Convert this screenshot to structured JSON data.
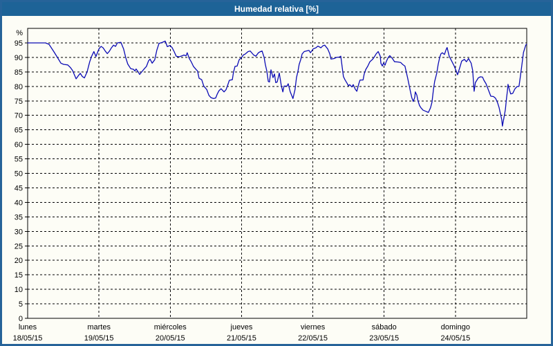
{
  "window": {
    "title": "Humedad relativa [%]"
  },
  "colors": {
    "titlebar_bg": "#1d6397",
    "frame_border": "#266399",
    "chart_bg": "#fdfdf6",
    "grid": "#000000",
    "line": "#0a0ab4",
    "title_text": "#ffffff",
    "axis_text": "#000000"
  },
  "chart_data": {
    "type": "line",
    "title": "Humedad relativa [%]",
    "xlabel": "",
    "ylabel": "%",
    "ylim": [
      0,
      100
    ],
    "yticks": [
      0,
      5,
      10,
      15,
      20,
      25,
      30,
      35,
      40,
      45,
      50,
      55,
      60,
      65,
      70,
      75,
      80,
      85,
      90,
      95
    ],
    "grid": "dashed",
    "legend": "none",
    "x_range_hours": [
      0,
      168
    ],
    "x_axis": {
      "days": [
        {
          "name": "lunes",
          "date": "18/05/15"
        },
        {
          "name": "martes",
          "date": "19/05/15"
        },
        {
          "name": "miércoles",
          "date": "20/05/15"
        },
        {
          "name": "jueves",
          "date": "21/05/15"
        },
        {
          "name": "viernes",
          "date": "22/05/15"
        },
        {
          "name": "sábado",
          "date": "23/05/15"
        },
        {
          "name": "domingo",
          "date": "24/05/15"
        }
      ]
    },
    "series": [
      {
        "name": "Humedad relativa",
        "color": "#0a0ab4",
        "units": "%",
        "points": [
          [
            0,
            95
          ],
          [
            6,
            95
          ],
          [
            7.2,
            94.5
          ],
          [
            8.8,
            92
          ],
          [
            10,
            90
          ],
          [
            11.2,
            88
          ],
          [
            12.1,
            87.6
          ],
          [
            13.5,
            87.4
          ],
          [
            14.4,
            86.5
          ],
          [
            15.1,
            85.5
          ],
          [
            16.3,
            82.6
          ],
          [
            17,
            83.6
          ],
          [
            17.7,
            84.5
          ],
          [
            18.4,
            83.4
          ],
          [
            19.1,
            82.9
          ],
          [
            20,
            85
          ],
          [
            20.9,
            88.5
          ],
          [
            21.6,
            90.5
          ],
          [
            22.3,
            92
          ],
          [
            23,
            90.3
          ],
          [
            24,
            92.9
          ],
          [
            24.7,
            93.8
          ],
          [
            25.4,
            93.3
          ],
          [
            26.1,
            92.2
          ],
          [
            26.8,
            91.3
          ],
          [
            27.5,
            92.1
          ],
          [
            28.2,
            93.3
          ],
          [
            28.9,
            94.2
          ],
          [
            29.6,
            93.8
          ],
          [
            30.2,
            95
          ],
          [
            31.4,
            95.2
          ],
          [
            32.3,
            92.9
          ],
          [
            33,
            90
          ],
          [
            33.7,
            87.7
          ],
          [
            34.7,
            86.1
          ],
          [
            35.6,
            85.9
          ],
          [
            36.1,
            85.3
          ],
          [
            36.5,
            86
          ],
          [
            37.2,
            85
          ],
          [
            37.7,
            84.1
          ],
          [
            38.4,
            85
          ],
          [
            39.3,
            86.1
          ],
          [
            40,
            86.9
          ],
          [
            40.7,
            88.8
          ],
          [
            41.2,
            89.4
          ],
          [
            41.9,
            88
          ],
          [
            42.8,
            89.2
          ],
          [
            43.5,
            92.5
          ],
          [
            44.2,
            94.8
          ],
          [
            45.4,
            95.2
          ],
          [
            46.3,
            95.6
          ],
          [
            47,
            93.7
          ],
          [
            47.9,
            94.1
          ],
          [
            48.6,
            93.4
          ],
          [
            49.3,
            92
          ],
          [
            50,
            90.4
          ],
          [
            51,
            90.2
          ],
          [
            51.9,
            90.5
          ],
          [
            52.6,
            90.8
          ],
          [
            53.3,
            90.5
          ],
          [
            53.7,
            91.6
          ],
          [
            54.4,
            89.6
          ],
          [
            55.1,
            88.4
          ],
          [
            55.8,
            86.9
          ],
          [
            56.8,
            85.7
          ],
          [
            57.2,
            85.3
          ],
          [
            57.7,
            82.8
          ],
          [
            58.6,
            82.3
          ],
          [
            59.3,
            80.1
          ],
          [
            60.3,
            78.9
          ],
          [
            61,
            76.9
          ],
          [
            61.7,
            76.1
          ],
          [
            62.6,
            75.8
          ],
          [
            63.3,
            76
          ],
          [
            63.8,
            77.3
          ],
          [
            64.4,
            78.5
          ],
          [
            65.1,
            79.2
          ],
          [
            66.1,
            78.1
          ],
          [
            66.8,
            78.9
          ],
          [
            67.5,
            80.9
          ],
          [
            67.9,
            82.1
          ],
          [
            68.9,
            82.3
          ],
          [
            69.3,
            84.9
          ],
          [
            69.8,
            86.9
          ],
          [
            70.5,
            87
          ],
          [
            71.2,
            89.2
          ],
          [
            71.9,
            89.8
          ],
          [
            72.6,
            90.8
          ],
          [
            73.3,
            91.2
          ],
          [
            74.2,
            92
          ],
          [
            74.9,
            92.2
          ],
          [
            76.1,
            90.8
          ],
          [
            76.8,
            90.4
          ],
          [
            77.7,
            91.6
          ],
          [
            78.4,
            92
          ],
          [
            78.9,
            92.2
          ],
          [
            79.6,
            90
          ],
          [
            80,
            87.6
          ],
          [
            80.5,
            85.3
          ],
          [
            81,
            81.7
          ],
          [
            81.4,
            81.5
          ],
          [
            81.9,
            85.7
          ],
          [
            82.6,
            83
          ],
          [
            83.1,
            84.3
          ],
          [
            83.5,
            81.3
          ],
          [
            84,
            81.5
          ],
          [
            84.7,
            84.6
          ],
          [
            85.4,
            80.2
          ],
          [
            85.9,
            78.1
          ],
          [
            86.3,
            80.1
          ],
          [
            87.3,
            80.1
          ],
          [
            87.7,
            80.9
          ],
          [
            88.4,
            78.1
          ],
          [
            89.3,
            75.8
          ],
          [
            90,
            78.9
          ],
          [
            90.5,
            83
          ],
          [
            91,
            85.3
          ],
          [
            91.4,
            87.6
          ],
          [
            91.9,
            89.2
          ],
          [
            92.4,
            91.2
          ],
          [
            93.1,
            92
          ],
          [
            94.7,
            92.4
          ],
          [
            95.2,
            91.6
          ],
          [
            96.1,
            92.9
          ],
          [
            97,
            93.3
          ],
          [
            97.7,
            93.9
          ],
          [
            98.7,
            93.3
          ],
          [
            99.4,
            94
          ],
          [
            100,
            94.2
          ],
          [
            101,
            92.9
          ],
          [
            101.7,
            91.2
          ],
          [
            102.1,
            89.4
          ],
          [
            103.1,
            89.6
          ],
          [
            104,
            90
          ],
          [
            104.9,
            90.1
          ],
          [
            105.4,
            90.4
          ],
          [
            105.9,
            86.5
          ],
          [
            106.3,
            83.4
          ],
          [
            106.8,
            82.3
          ],
          [
            107.5,
            81.1
          ],
          [
            108,
            80.2
          ],
          [
            108.4,
            80.6
          ],
          [
            109.1,
            79.8
          ],
          [
            109.6,
            80.6
          ],
          [
            110.3,
            79
          ],
          [
            110.8,
            78.3
          ],
          [
            111.5,
            81
          ],
          [
            111.9,
            82.2
          ],
          [
            112.9,
            82.2
          ],
          [
            113.3,
            84.3
          ],
          [
            113.8,
            85.8
          ],
          [
            114.5,
            87
          ],
          [
            115.2,
            88.5
          ],
          [
            116.1,
            89.3
          ],
          [
            116.6,
            90
          ],
          [
            117.3,
            91.2
          ],
          [
            118,
            92
          ],
          [
            118.7,
            90.4
          ],
          [
            118.9,
            88
          ],
          [
            119.4,
            87
          ],
          [
            119.8,
            88.1
          ],
          [
            120.3,
            87.3
          ],
          [
            120.7,
            88.5
          ],
          [
            121.4,
            90
          ],
          [
            121.9,
            90.6
          ],
          [
            122.8,
            89.6
          ],
          [
            123.5,
            88.5
          ],
          [
            124.7,
            88.4
          ],
          [
            125.6,
            88.2
          ],
          [
            126.3,
            87.5
          ],
          [
            127,
            87
          ],
          [
            127.4,
            85.2
          ],
          [
            127.9,
            82.9
          ],
          [
            128.4,
            80.5
          ],
          [
            128.8,
            78.5
          ],
          [
            129.3,
            76.1
          ],
          [
            129.8,
            74.8
          ],
          [
            130.3,
            76.2
          ],
          [
            130.5,
            78.1
          ],
          [
            131,
            77
          ],
          [
            131.4,
            75
          ],
          [
            131.9,
            73.4
          ],
          [
            132.4,
            72.6
          ],
          [
            133.1,
            71.8
          ],
          [
            134,
            71.4
          ],
          [
            134.9,
            71
          ],
          [
            135.6,
            72.6
          ],
          [
            136.1,
            74.5
          ],
          [
            136.6,
            79
          ],
          [
            137,
            81.7
          ],
          [
            137.7,
            84.5
          ],
          [
            138.2,
            87.6
          ],
          [
            138.7,
            90
          ],
          [
            139.1,
            91.2
          ],
          [
            139.6,
            91.6
          ],
          [
            140.3,
            91
          ],
          [
            140.8,
            92.5
          ],
          [
            141.2,
            93.4
          ],
          [
            141.9,
            90.4
          ],
          [
            142.9,
            88.4
          ],
          [
            143.6,
            87
          ],
          [
            144.3,
            85.2
          ],
          [
            144.7,
            84
          ],
          [
            145.4,
            86.3
          ],
          [
            146.1,
            88.7
          ],
          [
            147,
            89.3
          ],
          [
            147.7,
            88.5
          ],
          [
            148.4,
            89.6
          ],
          [
            149.3,
            88
          ],
          [
            149.8,
            85.5
          ],
          [
            150.3,
            78.3
          ],
          [
            150.7,
            81.3
          ],
          [
            151.7,
            82.9
          ],
          [
            152.4,
            83.3
          ],
          [
            153.1,
            83.2
          ],
          [
            153.6,
            82.1
          ],
          [
            154.3,
            80.9
          ],
          [
            155.2,
            78.5
          ],
          [
            155.9,
            76.6
          ],
          [
            156.8,
            76.5
          ],
          [
            157.5,
            75.9
          ],
          [
            158.2,
            74.3
          ],
          [
            158.7,
            72.7
          ],
          [
            159.1,
            70.7
          ],
          [
            159.6,
            68.5
          ],
          [
            159.8,
            66.3
          ],
          [
            160.3,
            69
          ],
          [
            160.8,
            72
          ],
          [
            161.2,
            76
          ],
          [
            161.5,
            78.5
          ],
          [
            161.7,
            80.7
          ],
          [
            162.2,
            78.7
          ],
          [
            162.6,
            77.4
          ],
          [
            163.3,
            77.6
          ],
          [
            164,
            79.1
          ],
          [
            164.7,
            79.9
          ],
          [
            165.4,
            80
          ],
          [
            165.8,
            82.9
          ],
          [
            166.2,
            86.1
          ],
          [
            166.6,
            89.3
          ],
          [
            166.9,
            91.7
          ],
          [
            167.3,
            93
          ],
          [
            167.7,
            94.3
          ],
          [
            168,
            94.5
          ]
        ]
      }
    ]
  }
}
